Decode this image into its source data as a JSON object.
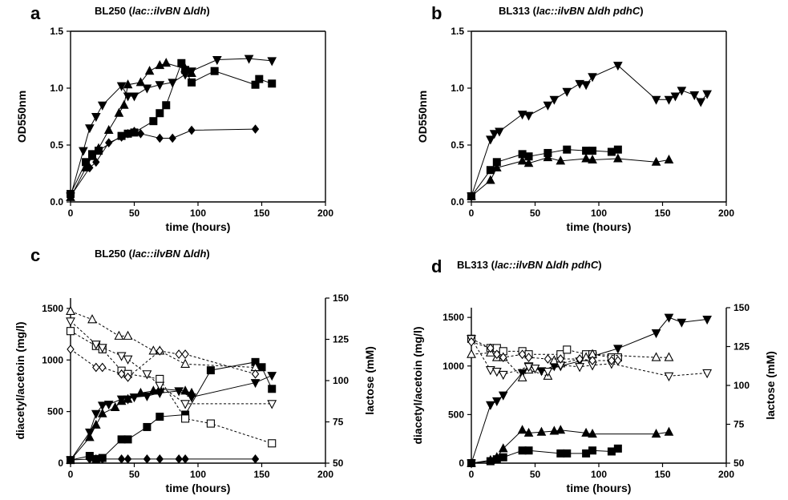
{
  "chart_data": [
    {
      "panel": "a",
      "type": "line",
      "title": {
        "prefix": "BL250 (",
        "strain": "lac::ilvBN",
        "delta": "Δ",
        "gene1": "ldh",
        "gene2": "",
        "suffix": ")"
      },
      "xlabel": "time (hours)",
      "ylabel": "OD550nm",
      "xlim": [
        0,
        200
      ],
      "ylim": [
        0,
        1.5
      ],
      "xticks": [
        "0",
        "50",
        "100",
        "150",
        "200"
      ],
      "yticks": [
        "0.0",
        "0.5",
        "1.0",
        "1.5"
      ],
      "grid": false,
      "legend": "none",
      "series": [
        {
          "marker": "triangle-down",
          "filled": true,
          "dashed": false,
          "axis": "left",
          "x": [
            0,
            10,
            15,
            20,
            25,
            40,
            45,
            50,
            60,
            70,
            80,
            90,
            95,
            115,
            140,
            158
          ],
          "y": [
            0.05,
            0.45,
            0.65,
            0.75,
            0.85,
            1.02,
            0.93,
            0.93,
            1.0,
            1.03,
            1.05,
            1.12,
            1.15,
            1.25,
            1.26,
            1.24
          ]
        },
        {
          "marker": "triangle-up",
          "filled": true,
          "dashed": false,
          "axis": "left",
          "x": [
            0,
            12,
            17,
            22,
            30,
            38,
            42,
            45,
            55,
            62,
            70,
            75,
            90,
            95
          ],
          "y": [
            0.04,
            0.3,
            0.4,
            0.47,
            0.63,
            0.78,
            0.85,
            1.03,
            1.05,
            1.15,
            1.2,
            1.22,
            1.17,
            1.13
          ]
        },
        {
          "marker": "square",
          "filled": true,
          "dashed": false,
          "axis": "left",
          "x": [
            0,
            12,
            17,
            22,
            40,
            45,
            50,
            65,
            70,
            75,
            87,
            90,
            95,
            113,
            145,
            148,
            158
          ],
          "y": [
            0.07,
            0.35,
            0.42,
            0.45,
            0.58,
            0.6,
            0.61,
            0.71,
            0.78,
            0.85,
            1.22,
            1.16,
            1.05,
            1.15,
            1.03,
            1.08,
            1.04
          ]
        },
        {
          "marker": "diamond",
          "filled": true,
          "dashed": false,
          "axis": "left",
          "x": [
            0,
            15,
            20,
            30,
            40,
            45,
            50,
            55,
            70,
            80,
            95,
            145
          ],
          "y": [
            0.05,
            0.3,
            0.35,
            0.52,
            0.57,
            0.6,
            0.62,
            0.6,
            0.56,
            0.56,
            0.63,
            0.64
          ]
        }
      ]
    },
    {
      "panel": "b",
      "type": "line",
      "title": {
        "prefix": "BL313 (",
        "strain": "lac::ilvBN",
        "delta": "Δ",
        "gene1": "ldh",
        "gene2": " pdhC",
        "suffix": ")"
      },
      "xlabel": "time (hours)",
      "ylabel": "OD550nm",
      "xlim": [
        0,
        200
      ],
      "ylim": [
        0,
        1.5
      ],
      "xticks": [
        "0",
        "50",
        "100",
        "150",
        "200"
      ],
      "yticks": [
        "0.0",
        "0.5",
        "1.0",
        "1.5"
      ],
      "grid": false,
      "legend": "none",
      "series": [
        {
          "marker": "triangle-down",
          "filled": true,
          "dashed": false,
          "axis": "left",
          "x": [
            0,
            15,
            18,
            22,
            40,
            45,
            60,
            65,
            75,
            85,
            90,
            95,
            115,
            145,
            155,
            160,
            165,
            175,
            180,
            185
          ],
          "y": [
            0.05,
            0.55,
            0.6,
            0.62,
            0.77,
            0.76,
            0.85,
            0.9,
            0.97,
            1.04,
            1.03,
            1.1,
            1.2,
            0.9,
            0.9,
            0.93,
            0.98,
            0.94,
            0.88,
            0.95
          ]
        },
        {
          "marker": "square",
          "filled": true,
          "dashed": false,
          "axis": "left",
          "x": [
            0,
            15,
            20,
            40,
            45,
            60,
            75,
            90,
            95,
            110,
            115
          ],
          "y": [
            0.05,
            0.28,
            0.35,
            0.42,
            0.4,
            0.43,
            0.46,
            0.45,
            0.45,
            0.44,
            0.46
          ]
        },
        {
          "marker": "triangle-up",
          "filled": true,
          "dashed": false,
          "axis": "left",
          "x": [
            0,
            15,
            20,
            40,
            45,
            60,
            70,
            90,
            95,
            115,
            145,
            155
          ],
          "y": [
            0.05,
            0.19,
            0.3,
            0.36,
            0.34,
            0.39,
            0.36,
            0.38,
            0.37,
            0.38,
            0.35,
            0.37
          ]
        }
      ]
    },
    {
      "panel": "c",
      "type": "line",
      "title": {
        "prefix": "BL250 (",
        "strain": "lac::ilvBN",
        "delta": "Δ",
        "gene1": "ldh",
        "gene2": "",
        "suffix": ")"
      },
      "xlabel": "time (hours)",
      "ylabel": "diacetyl/acetoin (mg/l)",
      "y2label": "lactose (mM)",
      "xlim": [
        0,
        200
      ],
      "ylim": [
        0,
        1600
      ],
      "y2lim": [
        50,
        150
      ],
      "xticks": [
        "0",
        "50",
        "100",
        "150",
        "200"
      ],
      "yticks": [
        "0",
        "500",
        "1000",
        "1500"
      ],
      "y2ticks": [
        "50",
        "75",
        "100",
        "125",
        "150"
      ],
      "grid": false,
      "legend": "none",
      "series": [
        {
          "marker": "triangle-down",
          "filled": true,
          "dashed": false,
          "axis": "left",
          "x": [
            0,
            15,
            20,
            25,
            30,
            40,
            45,
            50,
            60,
            70,
            85,
            95,
            145,
            158
          ],
          "y": [
            30,
            300,
            480,
            560,
            570,
            620,
            620,
            640,
            650,
            680,
            700,
            640,
            780,
            850
          ]
        },
        {
          "marker": "triangle-up",
          "filled": true,
          "dashed": false,
          "axis": "left",
          "x": [
            0,
            15,
            20,
            25,
            35,
            40,
            45,
            55,
            65,
            70,
            90,
            95
          ],
          "y": [
            30,
            250,
            370,
            480,
            540,
            600,
            620,
            680,
            700,
            720,
            700,
            680
          ]
        },
        {
          "marker": "square",
          "filled": true,
          "dashed": false,
          "axis": "left",
          "x": [
            0,
            15,
            20,
            25,
            40,
            45,
            60,
            70,
            90,
            110,
            145,
            150,
            158
          ],
          "y": [
            30,
            70,
            40,
            50,
            230,
            230,
            350,
            450,
            470,
            900,
            980,
            930,
            720
          ]
        },
        {
          "marker": "diamond",
          "filled": true,
          "dashed": false,
          "axis": "left",
          "x": [
            0,
            15,
            20,
            25,
            40,
            45,
            60,
            70,
            85,
            90,
            145
          ],
          "y": [
            30,
            40,
            40,
            40,
            40,
            40,
            40,
            40,
            40,
            40,
            40
          ]
        },
        {
          "marker": "triangle-up",
          "filled": false,
          "dashed": true,
          "axis": "right",
          "x": [
            0,
            17,
            38,
            45,
            65,
            70,
            90,
            145
          ],
          "y": [
            142,
            137,
            127,
            127,
            118,
            118,
            110,
            108
          ]
        },
        {
          "marker": "square",
          "filled": false,
          "dashed": true,
          "axis": "right",
          "x": [
            0,
            20,
            25,
            40,
            45,
            70,
            90,
            110,
            158
          ],
          "y": [
            130,
            121,
            119,
            106,
            104,
            101,
            77,
            74,
            62
          ]
        },
        {
          "marker": "triangle-down",
          "filled": false,
          "dashed": true,
          "axis": "right",
          "x": [
            0,
            20,
            25,
            40,
            45,
            60,
            70,
            90,
            158
          ],
          "y": [
            136,
            122,
            120,
            115,
            113,
            104,
            97,
            86,
            86
          ]
        },
        {
          "marker": "diamond",
          "filled": false,
          "dashed": true,
          "axis": "right",
          "x": [
            0,
            20,
            25,
            40,
            45,
            70,
            85,
            90,
            145
          ],
          "y": [
            119,
            108,
            108,
            104,
            102,
            118,
            116,
            116,
            104
          ]
        }
      ]
    },
    {
      "panel": "d",
      "type": "line",
      "title": {
        "prefix": "BL313 (",
        "strain": "lac::ilvBN",
        "delta": "Δ",
        "gene1": "ldh",
        "gene2": " pdhC",
        "suffix": ")"
      },
      "xlabel": "time (hours)",
      "ylabel": "diacetyl/acetoin (mg/l)",
      "y2label": "lactose (mM)",
      "xlim": [
        0,
        200
      ],
      "ylim": [
        0,
        1600
      ],
      "y2lim": [
        50,
        150
      ],
      "xticks": [
        "0",
        "50",
        "100",
        "150",
        "200"
      ],
      "yticks": [
        "0",
        "500",
        "1000",
        "1500"
      ],
      "y2ticks": [
        "50",
        "75",
        "100",
        "125",
        "150"
      ],
      "grid": false,
      "legend": "none",
      "series": [
        {
          "marker": "triangle-down",
          "filled": true,
          "dashed": false,
          "axis": "left",
          "x": [
            0,
            15,
            20,
            25,
            40,
            45,
            55,
            65,
            70,
            85,
            95,
            115,
            145,
            155,
            165,
            185
          ],
          "y": [
            0,
            600,
            640,
            700,
            930,
            1000,
            950,
            1000,
            1000,
            1050,
            1100,
            1180,
            1340,
            1500,
            1450,
            1480
          ]
        },
        {
          "marker": "triangle-up",
          "filled": true,
          "dashed": false,
          "axis": "left",
          "x": [
            0,
            15,
            20,
            25,
            40,
            45,
            55,
            65,
            70,
            90,
            95,
            145,
            155
          ],
          "y": [
            0,
            30,
            60,
            150,
            340,
            310,
            320,
            330,
            340,
            310,
            300,
            300,
            320
          ]
        },
        {
          "marker": "square",
          "filled": true,
          "dashed": false,
          "axis": "left",
          "x": [
            0,
            15,
            20,
            25,
            40,
            45,
            70,
            75,
            90,
            95,
            110,
            115
          ],
          "y": [
            0,
            20,
            40,
            60,
            130,
            130,
            100,
            100,
            100,
            130,
            120,
            150
          ]
        },
        {
          "marker": "square",
          "filled": false,
          "dashed": true,
          "axis": "right",
          "x": [
            0,
            15,
            20,
            25,
            40,
            45,
            70,
            75,
            90,
            95,
            110,
            115
          ],
          "y": [
            130,
            124,
            124,
            122,
            122,
            120,
            120,
            123,
            120,
            120,
            118,
            118
          ]
        },
        {
          "marker": "triangle-up",
          "filled": false,
          "dashed": true,
          "axis": "right",
          "x": [
            0,
            15,
            20,
            25,
            40,
            45,
            60,
            65,
            70,
            90,
            95,
            145,
            155
          ],
          "y": [
            120,
            121,
            118,
            118,
            105,
            110,
            106,
            116,
            114,
            118,
            120,
            118,
            118
          ]
        },
        {
          "marker": "triangle-down",
          "filled": false,
          "dashed": true,
          "axis": "right",
          "x": [
            0,
            15,
            20,
            25,
            45,
            50,
            60,
            70,
            85,
            95,
            110,
            155,
            185
          ],
          "y": [
            130,
            110,
            109,
            107,
            112,
            111,
            109,
            113,
            112,
            113,
            114,
            106,
            108
          ]
        },
        {
          "marker": "diamond",
          "filled": false,
          "dashed": true,
          "axis": "right",
          "x": [
            0,
            15,
            20,
            25,
            40,
            45,
            60,
            70,
            85,
            95,
            110,
            115
          ],
          "y": [
            128,
            124,
            120,
            118,
            120,
            118,
            117,
            117,
            117,
            116,
            116,
            116
          ]
        }
      ]
    }
  ]
}
